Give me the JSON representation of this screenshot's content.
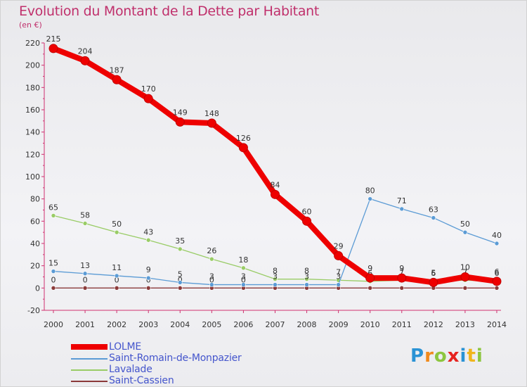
{
  "title": "Evolution du Montant de la Dette par Habitant",
  "unit": "(en €)",
  "brand": {
    "letters": [
      "P",
      "r",
      "o",
      "x",
      "i",
      "t",
      "i"
    ],
    "colors": [
      "#2a93d5",
      "#f08a1c",
      "#8dc63f",
      "#e6231f",
      "#2a93d5",
      "#f0b51c",
      "#8dc63f"
    ]
  },
  "chart_data": {
    "type": "line",
    "x": [
      "2000",
      "2001",
      "2002",
      "2003",
      "2004",
      "2005",
      "2006",
      "2007",
      "2008",
      "2009",
      "2010",
      "2011",
      "2012",
      "2013",
      "2014"
    ],
    "ylim": [
      -20,
      220
    ],
    "yticks": [
      -20,
      0,
      20,
      40,
      60,
      80,
      100,
      120,
      140,
      160,
      180,
      200,
      220
    ],
    "grid": false,
    "legend_position": "bottom-left",
    "series": [
      {
        "name": "Saint-Cassien",
        "color": "#8b3a3a",
        "values": [
          0,
          0,
          0,
          0,
          0,
          0,
          0,
          0,
          0,
          0,
          0,
          0,
          0,
          0,
          0
        ],
        "labels": [
          "0",
          "0",
          "0",
          "0",
          "0",
          "0",
          "0",
          "",
          "",
          "",
          "",
          "",
          "",
          "",
          ""
        ]
      },
      {
        "name": "Lavalade",
        "color": "#99cc66",
        "values": [
          65,
          58,
          50,
          43,
          35,
          26,
          18,
          8,
          8,
          7,
          6,
          7,
          6,
          7,
          6
        ],
        "labels": [
          "65",
          "58",
          "50",
          "43",
          "35",
          "26",
          "18",
          "8",
          "8",
          "7",
          "6",
          "7",
          "6",
          "7",
          "6"
        ]
      },
      {
        "name": "Saint-Romain-de-Monpazier",
        "color": "#5b9bd5",
        "values": [
          15,
          13,
          11,
          9,
          5,
          3,
          3,
          3,
          3,
          3,
          80,
          71,
          63,
          50,
          40
        ],
        "labels": [
          "15",
          "13",
          "11",
          "9",
          "5",
          "3",
          "3",
          "3",
          "3",
          "3",
          "80",
          "71",
          "63",
          "50",
          "40"
        ]
      },
      {
        "name": "LOLME",
        "color": "#ee0000",
        "values": [
          215,
          204,
          187,
          170,
          149,
          148,
          126,
          84,
          60,
          29,
          9,
          9,
          5,
          10,
          6
        ],
        "labels": [
          "215",
          "204",
          "187",
          "170",
          "149",
          "148",
          "126",
          "84",
          "60",
          "29",
          "9",
          "9",
          "5",
          "10",
          "6"
        ]
      }
    ],
    "legend": [
      "LOLME",
      "Saint-Romain-de-Monpazier",
      "Lavalade",
      "Saint-Cassien"
    ]
  }
}
